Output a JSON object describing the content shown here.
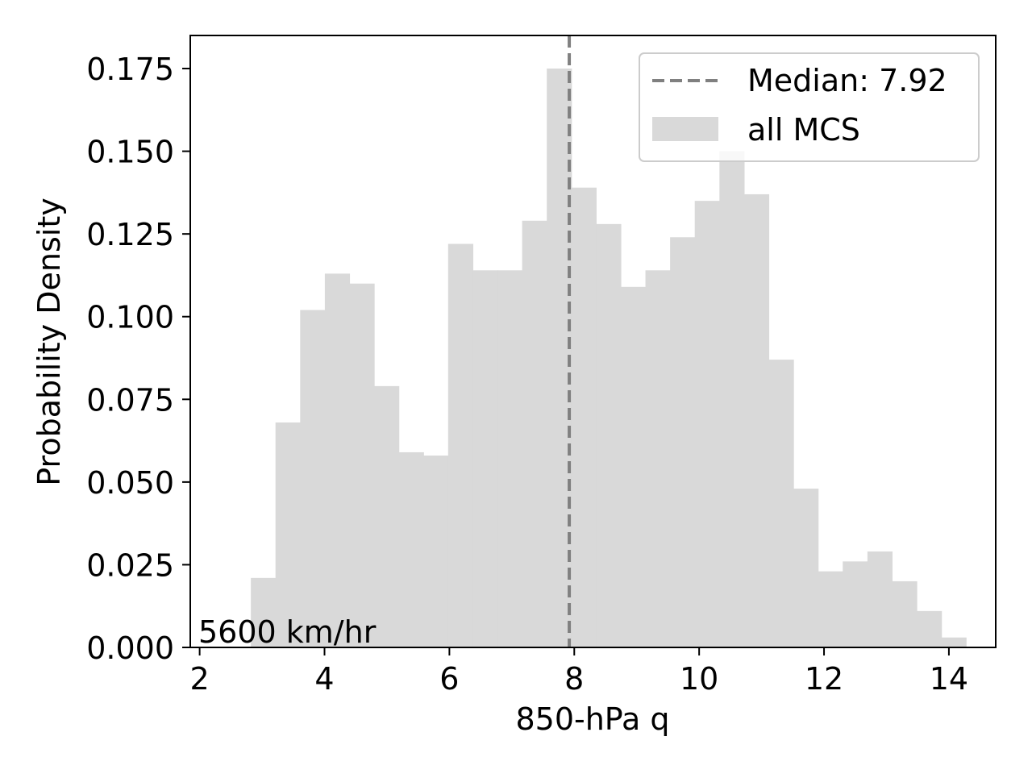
{
  "chart_data": {
    "type": "bar",
    "xlabel": "850-hPa q",
    "ylabel": "Probability Density",
    "xlim": [
      1.85,
      14.75
    ],
    "ylim": [
      0,
      0.185
    ],
    "x_ticks": [
      2,
      4,
      6,
      8,
      10,
      12,
      14
    ],
    "y_ticks": [
      0.0,
      0.025,
      0.05,
      0.075,
      0.1,
      0.125,
      0.15,
      0.175
    ],
    "y_tick_labels": [
      "0.000",
      "0.025",
      "0.050",
      "0.075",
      "0.100",
      "0.125",
      "0.150",
      "0.175"
    ],
    "bin_edges": [
      2.82,
      3.215,
      3.61,
      4.005,
      4.4,
      4.795,
      5.19,
      5.585,
      5.98,
      6.375,
      6.77,
      7.165,
      7.56,
      7.955,
      8.35,
      8.745,
      9.14,
      9.535,
      9.93,
      10.325,
      10.72,
      11.115,
      11.51,
      11.905,
      12.3,
      12.695,
      13.09,
      13.485,
      13.88,
      14.275
    ],
    "values": [
      0.021,
      0.068,
      0.102,
      0.113,
      0.11,
      0.079,
      0.059,
      0.058,
      0.122,
      0.114,
      0.114,
      0.129,
      0.175,
      0.139,
      0.128,
      0.109,
      0.114,
      0.124,
      0.135,
      0.15,
      0.137,
      0.087,
      0.048,
      0.023,
      0.026,
      0.029,
      0.02,
      0.011,
      0.003
    ],
    "median": 7.92,
    "grid": false,
    "legend_position": "top-right",
    "legend": [
      {
        "label": "Median: 7.92",
        "style": "dashed-line",
        "color": "#808080"
      },
      {
        "label": "all MCS",
        "style": "patch",
        "color": "#d9d9d9"
      }
    ],
    "annotation": "5600 km/hr",
    "bar_color": "#d9d9d9",
    "median_color": "#808080"
  }
}
